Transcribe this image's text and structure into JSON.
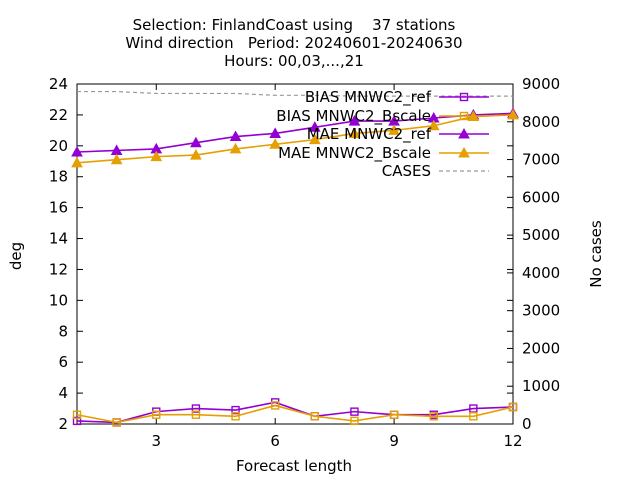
{
  "chart_data": {
    "type": "line",
    "title_lines": [
      "Selection: FinlandCoast using    37 stations",
      "Wind direction   Period: 20240601-20240630",
      "Hours: 00,03,...,21"
    ],
    "xlabel": "Forecast length",
    "ylabel": "deg",
    "y2label": "No cases",
    "xlim": [
      1,
      12
    ],
    "ylim": [
      2,
      24
    ],
    "y2lim": [
      0,
      9000
    ],
    "xticks": [
      3,
      6,
      9,
      12
    ],
    "yticks": [
      2,
      4,
      6,
      8,
      10,
      12,
      14,
      16,
      18,
      20,
      22,
      24
    ],
    "y2ticks": [
      0,
      1000,
      2000,
      3000,
      4000,
      5000,
      6000,
      7000,
      8000,
      9000
    ],
    "grid": false,
    "legend_position": "top-right",
    "x": [
      1,
      2,
      3,
      4,
      5,
      6,
      7,
      8,
      9,
      10,
      11,
      12
    ],
    "series": [
      {
        "name": "BIAS MNWC2_ref",
        "color": "#9400d3",
        "marker": "open-square",
        "axis": "y",
        "values": [
          2.2,
          2.1,
          2.8,
          3.0,
          2.9,
          3.4,
          2.5,
          2.8,
          2.6,
          2.6,
          3.0,
          3.1
        ]
      },
      {
        "name": "BIAS MNWC2_Bscale",
        "color": "#e69f00",
        "marker": "open-square",
        "axis": "y",
        "values": [
          2.6,
          2.1,
          2.6,
          2.6,
          2.5,
          3.2,
          2.5,
          2.2,
          2.6,
          2.5,
          2.5,
          3.1
        ]
      },
      {
        "name": "MAE MNWC2_ref",
        "color": "#9400d3",
        "marker": "filled-triangle",
        "axis": "y",
        "values": [
          19.6,
          19.7,
          19.8,
          20.2,
          20.6,
          20.8,
          21.2,
          21.6,
          21.6,
          21.8,
          22.0,
          22.1
        ]
      },
      {
        "name": "MAE MNWC2_Bscale",
        "color": "#e69f00",
        "marker": "filled-triangle",
        "axis": "y",
        "values": [
          18.9,
          19.1,
          19.3,
          19.4,
          19.8,
          20.1,
          20.4,
          20.8,
          21.0,
          21.3,
          21.9,
          22.0
        ]
      },
      {
        "name": "CASES",
        "color": "#999999",
        "marker": "none",
        "dash": true,
        "axis": "y2",
        "values": [
          8800,
          8800,
          8750,
          8750,
          8750,
          8700,
          8700,
          8680,
          8680,
          8680,
          8680,
          8680
        ]
      }
    ]
  }
}
